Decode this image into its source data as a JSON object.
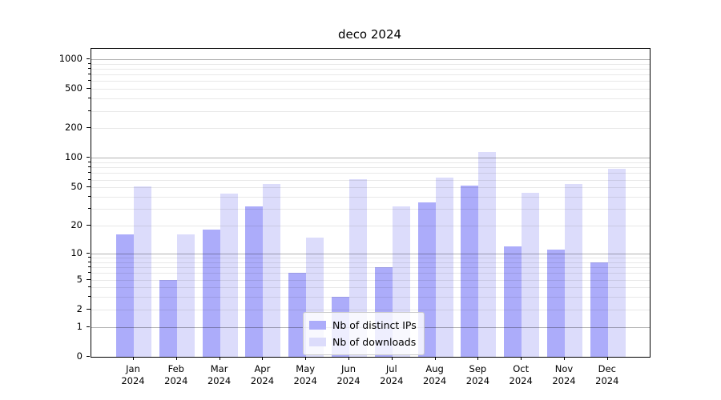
{
  "chart_data": {
    "type": "bar",
    "title": "deco 2024",
    "categories": [
      "Jan 2024",
      "Feb 2024",
      "Mar 2024",
      "Apr 2024",
      "May 2024",
      "Jun 2024",
      "Jul 2024",
      "Aug 2024",
      "Sep 2024",
      "Oct 2024",
      "Nov 2024",
      "Dec 2024"
    ],
    "series": [
      {
        "name": "Nb of distinct IPs",
        "color": "#acacfa",
        "values": [
          16,
          5,
          18,
          32,
          6,
          3,
          7,
          35,
          52,
          12,
          11,
          8
        ]
      },
      {
        "name": "Nb of downloads",
        "color": "#dcdcfb",
        "values": [
          51,
          16,
          43,
          54,
          15,
          61,
          32,
          63,
          114,
          44,
          54,
          77
        ]
      }
    ],
    "xlabel": "",
    "ylabel": "",
    "y_scale": "log1p",
    "y_ticks": [
      0,
      1,
      2,
      5,
      10,
      20,
      50,
      100,
      200,
      500,
      1000
    ],
    "y_major_gridlines": [
      1,
      10,
      100,
      1000
    ],
    "ylim": [
      0,
      1270
    ],
    "grid": "on",
    "grid_above_bars": true,
    "legend_position": "lower center",
    "colors": {
      "major_grid": "#b3b3b3",
      "minor_grid": "#e8e8e8",
      "spine": "#000000",
      "background": "#ffffff"
    }
  }
}
